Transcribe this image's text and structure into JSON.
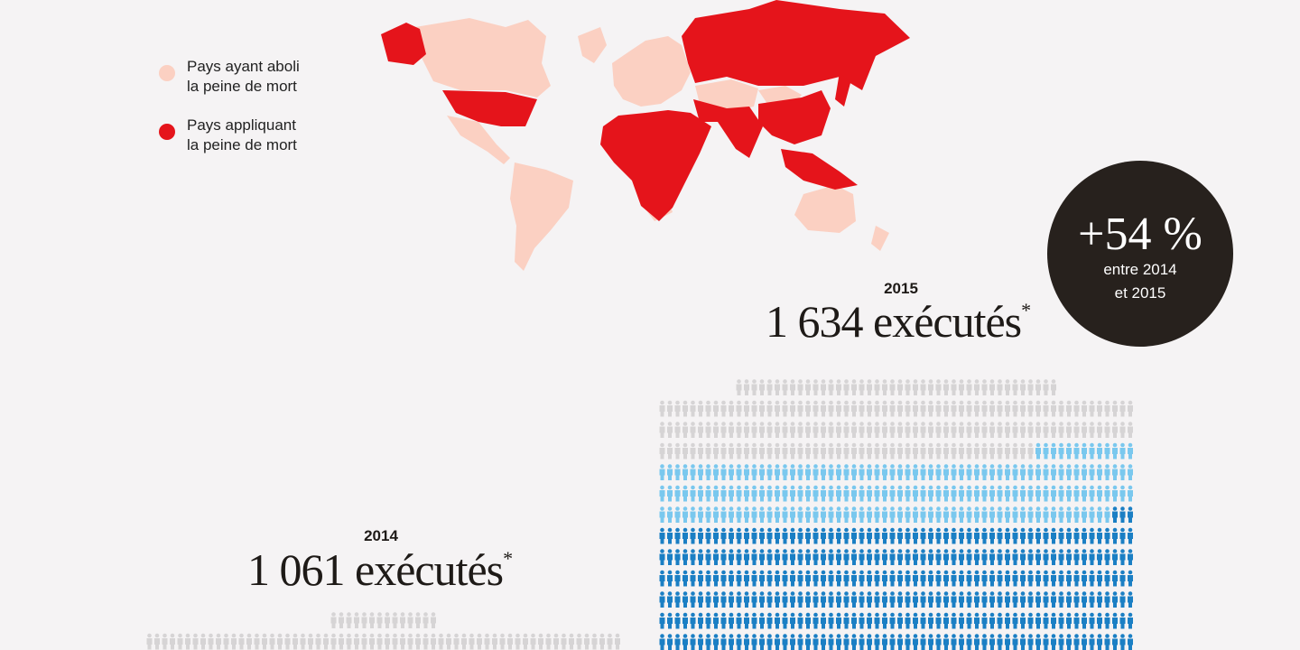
{
  "legend": [
    {
      "label": "Pays ayant aboli\nla peine de mort",
      "color": "#fbd0c2"
    },
    {
      "label": "Pays appliquant\nla peine de mort",
      "color": "#e5141b"
    }
  ],
  "map_colors": {
    "abolished": "#fbd0c2",
    "applying": "#e5141b"
  },
  "stats": {
    "y2015": {
      "year": "2015",
      "count_text": "1 634 exécutés",
      "asterisk": "*",
      "count": 1634
    },
    "y2014": {
      "year": "2014",
      "count_text": "1 061 exécutés",
      "asterisk": "*",
      "count": 1061
    }
  },
  "increase": {
    "value": "+54 %",
    "label": "entre 2014\net 2015"
  },
  "people_colors": {
    "gray": "#d6d4d5",
    "light_blue": "#7ac8ee",
    "blue": "#1b7fc4"
  }
}
